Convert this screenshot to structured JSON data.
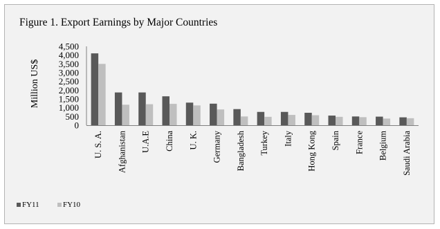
{
  "chart_data": {
    "type": "bar",
    "title": "Figure 1. Export Earnings by Major Countries",
    "ylabel": "Million US$",
    "xlabel": "",
    "ylim": [
      0,
      4500
    ],
    "yticks": [
      "4,500",
      "4,000",
      "3,500",
      "3,000",
      "2,500",
      "2,000",
      "1,500",
      "1,000",
      "500",
      "0"
    ],
    "ytick_values": [
      4500,
      4000,
      3500,
      3000,
      2500,
      2000,
      1500,
      1000,
      500,
      0
    ],
    "grid": false,
    "legend_position": "bottom-left",
    "categories": [
      "U. S. A.",
      "Afghanistan",
      "U.A.E",
      "China",
      "U. K.",
      "Germany",
      "Bangladesh",
      "Turkey",
      "Italy",
      "Hong Kong",
      "Spain",
      "France",
      "Belgium",
      "Saudi Arabia"
    ],
    "series": [
      {
        "name": "FY11",
        "color": "#595959",
        "values": [
          4100,
          1870,
          1870,
          1650,
          1290,
          1230,
          920,
          760,
          760,
          710,
          550,
          500,
          490,
          450
        ]
      },
      {
        "name": "FY10",
        "color": "#bfbfbf",
        "values": [
          3500,
          1170,
          1200,
          1220,
          1130,
          900,
          500,
          480,
          590,
          570,
          480,
          460,
          380,
          400
        ]
      }
    ]
  }
}
